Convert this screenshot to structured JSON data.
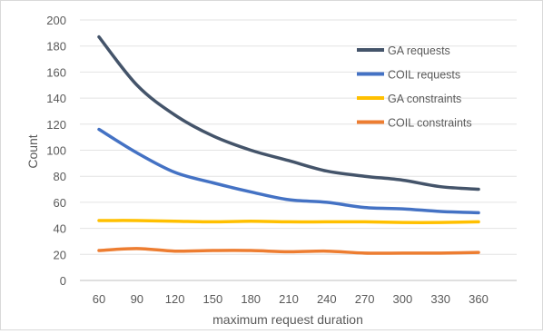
{
  "chart_data": {
    "type": "line",
    "title": "",
    "xlabel": "maximum request duration",
    "ylabel": "Count",
    "x": [
      60,
      90,
      120,
      150,
      180,
      210,
      240,
      270,
      300,
      330,
      360
    ],
    "ylim": [
      0,
      200
    ],
    "yticks": [
      0,
      20,
      40,
      60,
      80,
      100,
      120,
      140,
      160,
      180,
      200
    ],
    "grid": true,
    "legend_position": "top-right",
    "series": [
      {
        "name": "GA requests",
        "color": "#44546a",
        "values": [
          187,
          150,
          127,
          111,
          100,
          92,
          84,
          80,
          77,
          72,
          70
        ]
      },
      {
        "name": "COIL requests",
        "color": "#4472c4",
        "values": [
          116,
          98,
          83,
          75,
          68,
          62,
          60,
          56,
          55,
          53,
          52
        ]
      },
      {
        "name": "GA constraints",
        "color": "#ffc000",
        "values": [
          46,
          46,
          45.5,
          45,
          45.5,
          45,
          45,
          45,
          44.5,
          44.5,
          45
        ]
      },
      {
        "name": "COIL constraints",
        "color": "#ed7d31",
        "values": [
          23,
          24.5,
          22.5,
          23,
          23,
          22,
          22.5,
          21,
          21,
          21,
          21.5
        ]
      }
    ]
  }
}
